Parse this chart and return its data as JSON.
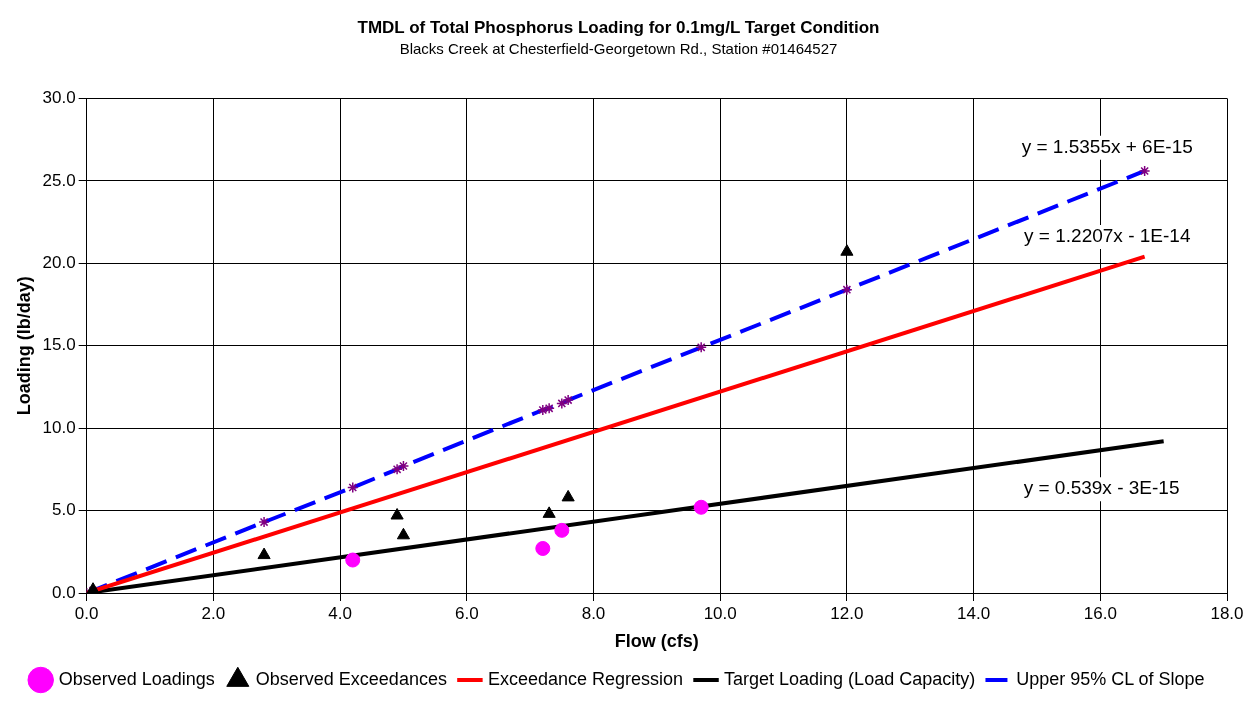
{
  "chart_data": {
    "type": "scatter",
    "title": "TMDL of Total Phosphorus Loading for 0.1mg/L Target Condition",
    "subtitle": "Blacks Creek at Chesterfield-Georgetown Rd., Station #01464527",
    "xlabel": "Flow (cfs)",
    "ylabel": "Loading (lb/day)",
    "xlim": [
      0,
      18
    ],
    "xticks": [
      {
        "value": 0,
        "label": "0.0"
      },
      {
        "value": 2,
        "label": "2.0"
      },
      {
        "value": 4,
        "label": "4.0"
      },
      {
        "value": 6,
        "label": "6.0"
      },
      {
        "value": 8,
        "label": "8.0"
      },
      {
        "value": 10,
        "label": "10.0"
      },
      {
        "value": 12,
        "label": "12.0"
      },
      {
        "value": 14,
        "label": "14.0"
      },
      {
        "value": 16,
        "label": "16.0"
      },
      {
        "value": 18,
        "label": "18.0"
      }
    ],
    "ylim": [
      0,
      30
    ],
    "yticks": [
      {
        "value": 0,
        "label": "0.0"
      },
      {
        "value": 5,
        "label": "5.0"
      },
      {
        "value": 10,
        "label": "10.0"
      },
      {
        "value": 15,
        "label": "15.0"
      },
      {
        "value": 20,
        "label": "20.0"
      },
      {
        "value": 25,
        "label": "25.0"
      },
      {
        "value": 30,
        "label": "30.0"
      }
    ],
    "grid": true,
    "legend": "bottom",
    "series": [
      {
        "name": "Observed Loadings",
        "marker": "circle",
        "color": "#ff00ff",
        "x": [
          4.2,
          7.2,
          7.5,
          9.7
        ],
        "values": [
          2.0,
          2.7,
          3.8,
          5.2
        ]
      },
      {
        "name": "Observed Exceedances",
        "marker": "triangle",
        "color": "#000000",
        "x": [
          0.1,
          2.8,
          4.9,
          5.0,
          7.3,
          7.6,
          12.0
        ],
        "values": [
          0.2,
          2.3,
          4.7,
          3.5,
          4.8,
          5.8,
          20.7
        ]
      },
      {
        "name": "Exceedance Regression",
        "type": "line",
        "marker": "none",
        "line_style": "solid",
        "color": "#ff0000",
        "x": [
          0,
          16.7
        ],
        "values": [
          0,
          20.4
        ]
      },
      {
        "name": "Target Loading (Load Capacity)",
        "type": "line",
        "marker": "none",
        "line_style": "solid",
        "color": "#000000",
        "x": [
          0,
          17.0
        ],
        "values": [
          0,
          9.2
        ]
      },
      {
        "name": "Upper 95% CL of Slope",
        "type": "line",
        "marker": "cross",
        "line_style": "dashed",
        "color": "#0000ff",
        "x": [
          0,
          0.1,
          2.8,
          4.2,
          4.9,
          5.0,
          7.2,
          7.3,
          7.5,
          7.6,
          9.7,
          12.0,
          16.7
        ],
        "values": [
          0,
          0.15,
          4.3,
          6.4,
          7.5,
          7.7,
          11.1,
          11.2,
          11.5,
          11.7,
          14.9,
          18.4,
          25.6
        ]
      }
    ],
    "annotations": [
      "y = 1.5355x + 6E-15",
      "y = 1.2207x - 1E-14",
      "y = 0.539x - 3E-15"
    ]
  }
}
